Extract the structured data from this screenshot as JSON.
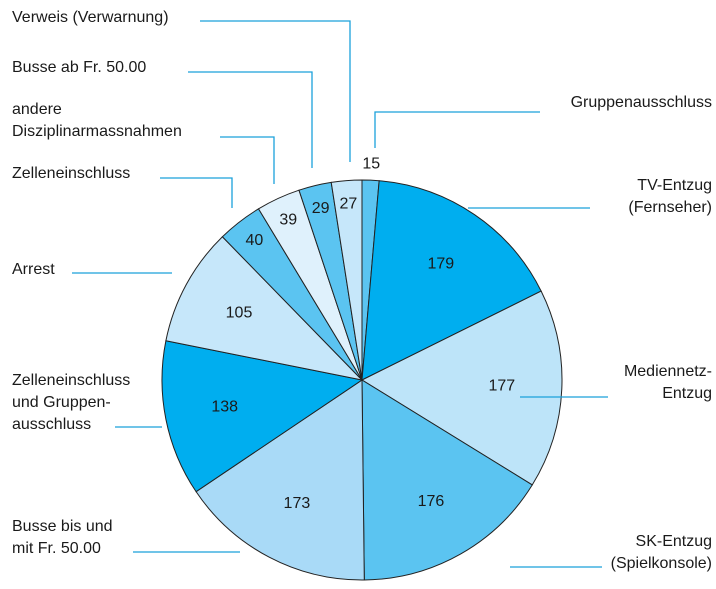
{
  "chart_data": {
    "type": "pie",
    "categories": [
      [
        "Gruppenausschluss"
      ],
      [
        "TV-Entzug",
        "(Fernseher)"
      ],
      [
        "Mediennetz-",
        "Entzug"
      ],
      [
        "SK-Entzug",
        "(Spielkonsole)"
      ],
      [
        "Busse bis und",
        "mit Fr. 50.00"
      ],
      [
        "Zelleneinschluss",
        "und Gruppen-",
        "ausschluss"
      ],
      [
        "Arrest"
      ],
      [
        "Zelleneinschluss"
      ],
      [
        "andere",
        "Disziplinarmassnahmen"
      ],
      [
        "Busse ab Fr. 50.00"
      ],
      [
        "Verweis (Verwarnung)"
      ]
    ],
    "values": [
      15,
      179,
      177,
      176,
      173,
      138,
      105,
      40,
      39,
      29,
      27
    ],
    "colors": [
      "#5bc4f1",
      "#00aeef",
      "#bde4f9",
      "#5bc4f1",
      "#a9daf7",
      "#00aeef",
      "#c6e7fa",
      "#5bc4f1",
      "#dff1fc",
      "#5bc4f1",
      "#c6e7fa"
    ]
  }
}
